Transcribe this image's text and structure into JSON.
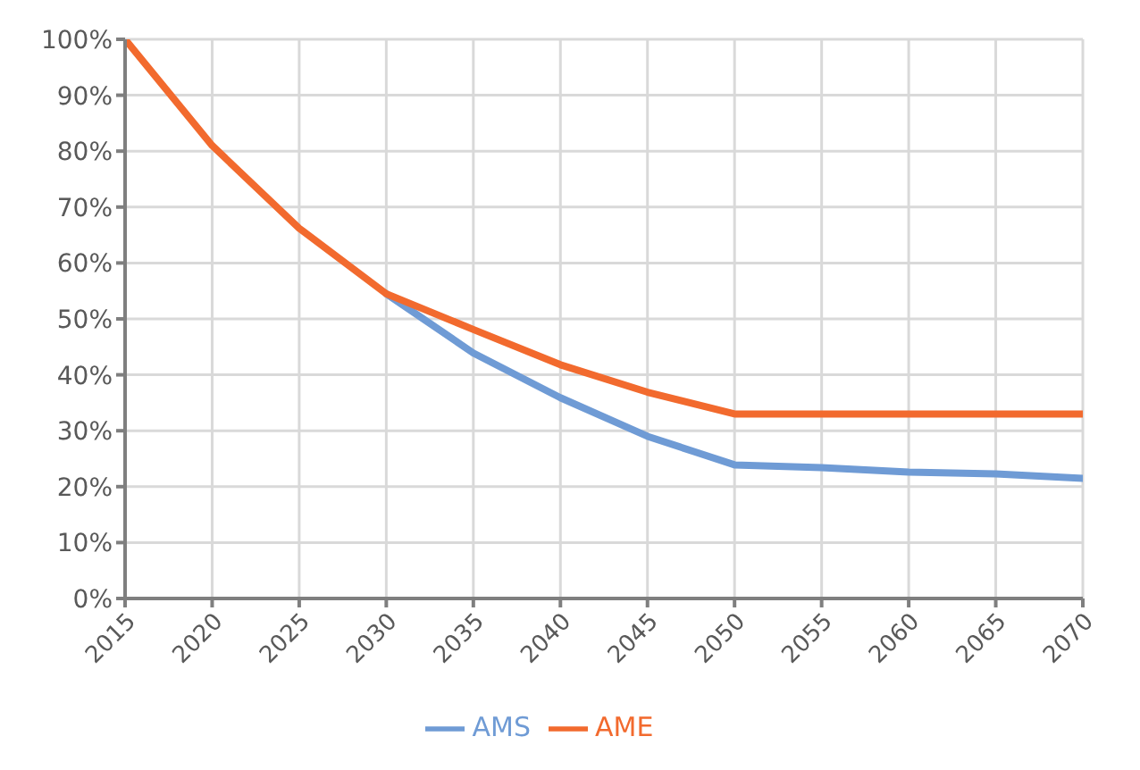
{
  "chart_data": {
    "type": "line",
    "x": [
      2015,
      2020,
      2025,
      2030,
      2035,
      2040,
      2045,
      2050,
      2055,
      2060,
      2065,
      2070
    ],
    "series": [
      {
        "name": "AMS",
        "color": "#6f9bd5",
        "values": [
          null,
          null,
          null,
          54.5,
          43.9,
          35.9,
          29,
          23.9,
          23.4,
          22.6,
          22.3,
          21.5
        ]
      },
      {
        "name": "AME",
        "color": "#f26a2e",
        "values": [
          100,
          81,
          66.2,
          54.5,
          48.1,
          41.8,
          36.9,
          33,
          33,
          33,
          33,
          33
        ]
      }
    ],
    "xlim": [
      2015,
      2070
    ],
    "xticks": [
      2015,
      2020,
      2025,
      2030,
      2035,
      2040,
      2045,
      2050,
      2055,
      2060,
      2065,
      2070
    ],
    "ylim": [
      0,
      100
    ],
    "yticks": [
      {
        "value": 0,
        "label": "0%"
      },
      {
        "value": 10,
        "label": "10%"
      },
      {
        "value": 20,
        "label": "20%"
      },
      {
        "value": 30,
        "label": "30%"
      },
      {
        "value": 40,
        "label": "40%"
      },
      {
        "value": 50,
        "label": "50%"
      },
      {
        "value": 60,
        "label": "60%"
      },
      {
        "value": 70,
        "label": "70%"
      },
      {
        "value": 80,
        "label": "80%"
      },
      {
        "value": 90,
        "label": "90%"
      },
      {
        "value": 100,
        "label": "100%"
      }
    ],
    "grid": true,
    "legend": "bottom",
    "marker": "none",
    "line_style": "solid"
  }
}
